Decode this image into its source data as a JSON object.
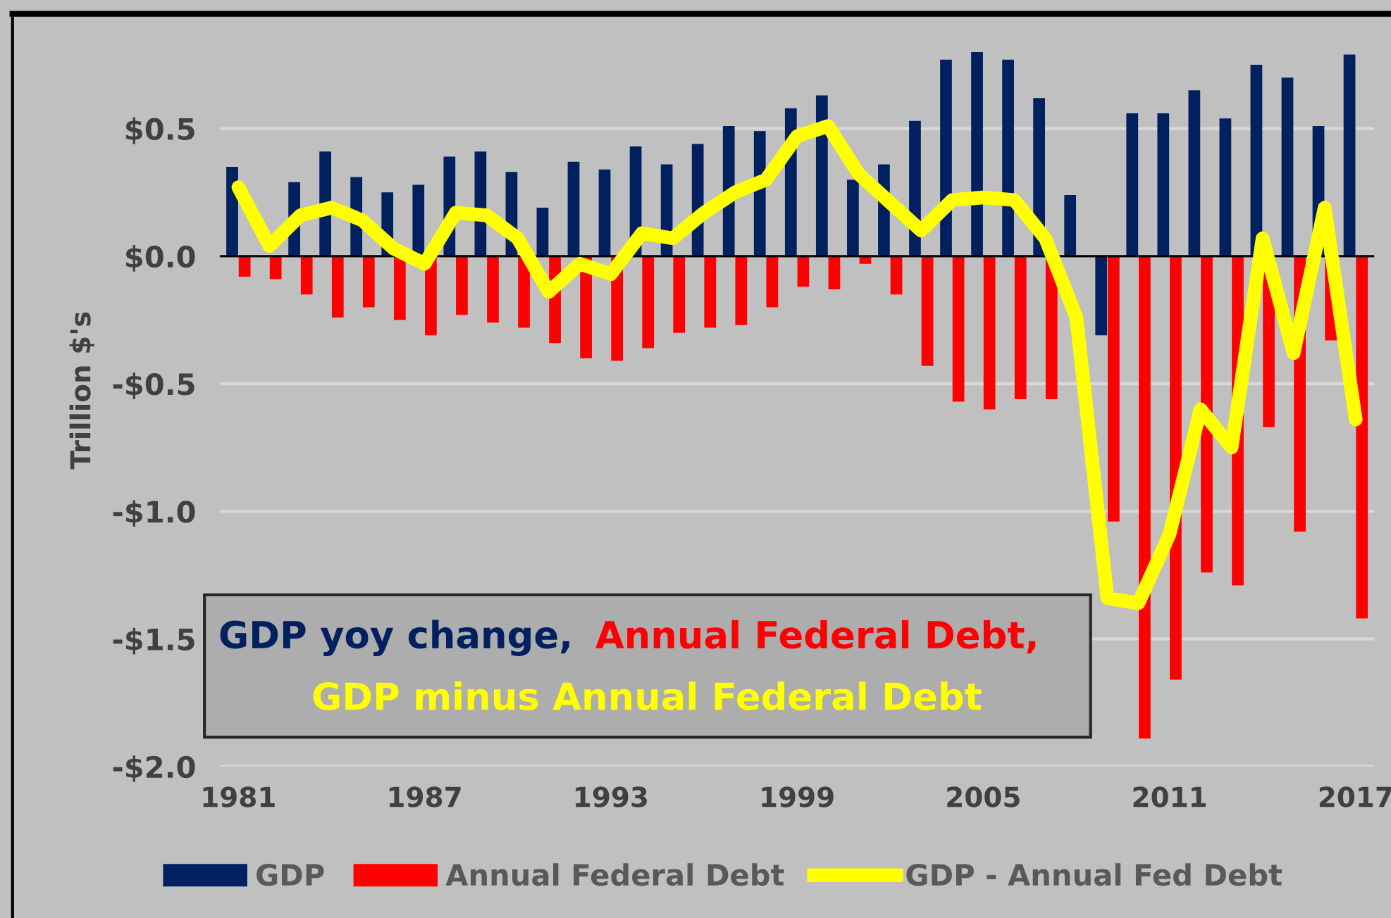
{
  "chart_data": {
    "type": "bar",
    "ylabel": "Trillion $'s",
    "categories": [
      "1981",
      null,
      null,
      null,
      null,
      null,
      "1987",
      null,
      null,
      null,
      null,
      null,
      "1993",
      null,
      null,
      null,
      null,
      null,
      "1999",
      null,
      null,
      null,
      null,
      null,
      "2005",
      null,
      null,
      null,
      null,
      null,
      "2011",
      null,
      null,
      null,
      null,
      null,
      "2017"
    ],
    "series": [
      {
        "name": "GDP",
        "color": "#002060",
        "values": [
          0.35,
          null,
          0.29,
          0.41,
          0.31,
          0.25,
          0.28,
          0.39,
          0.41,
          0.33,
          0.19,
          0.37,
          0.34,
          0.43,
          0.36,
          0.44,
          0.51,
          0.49,
          0.58,
          0.63,
          0.3,
          0.36,
          0.53,
          0.77,
          0.8,
          0.77,
          0.62,
          0.24,
          -0.31,
          0.56,
          0.56,
          0.65,
          0.54,
          0.75,
          0.7,
          0.51,
          0.79
        ]
      },
      {
        "name": "Annual Federal Debt",
        "color": "#ff0000",
        "values": [
          -0.08,
          -0.09,
          -0.15,
          -0.24,
          -0.2,
          -0.25,
          -0.31,
          -0.23,
          -0.26,
          -0.28,
          -0.34,
          -0.4,
          -0.41,
          -0.36,
          -0.3,
          -0.28,
          -0.27,
          -0.2,
          -0.12,
          -0.13,
          -0.03,
          -0.15,
          -0.43,
          -0.57,
          -0.6,
          -0.56,
          -0.56,
          null,
          -1.04,
          -1.89,
          -1.66,
          -1.24,
          -1.29,
          -0.67,
          -1.08,
          -0.33,
          -1.42
        ]
      },
      {
        "name": "GDP - Annual Fed Debt",
        "type": "line",
        "color": "#ffff00",
        "values": [
          0.27,
          0.04,
          0.16,
          0.19,
          0.14,
          0.03,
          -0.03,
          0.17,
          0.16,
          0.07,
          -0.14,
          -0.03,
          -0.07,
          0.09,
          0.07,
          0.17,
          0.25,
          0.3,
          0.47,
          0.51,
          0.32,
          0.21,
          0.1,
          0.22,
          0.23,
          0.22,
          0.07,
          -0.24,
          -1.34,
          -1.36,
          -1.09,
          -0.6,
          -0.75,
          0.07,
          -0.38,
          0.19,
          -0.64
        ]
      }
    ],
    "ylim": [
      -2.0,
      0.95
    ],
    "yticks": [
      {
        "value": 0.5,
        "label": "$0.5"
      },
      {
        "value": 0.0,
        "label": "$0.0"
      },
      {
        "value": -0.5,
        "label": "-$0.5"
      },
      {
        "value": -1.0,
        "label": "-$1.0"
      },
      {
        "value": -1.5,
        "label": "-$1.5"
      },
      {
        "value": -2.0,
        "label": "-$2.0"
      }
    ],
    "grid": "y",
    "legend": "bottom",
    "marker": "none",
    "line_style": "solid",
    "annotations": [
      "GDP yoy change,",
      "Annual Federal Debt,",
      "GDP minus Annual Federal Debt"
    ]
  }
}
